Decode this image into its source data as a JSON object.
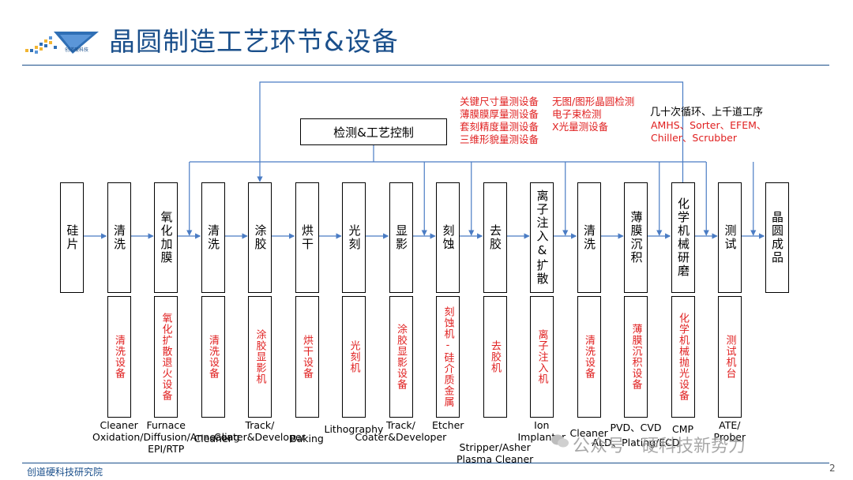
{
  "title": "晶圆制造工艺环节&设备",
  "logo_text": "创道硬科技",
  "footer": "创道硬科技研究院",
  "page_number": "2",
  "control_box": "检测&工艺控制",
  "inspection_left": [
    "关键尺寸量测设备",
    "薄膜膜厚量测设备",
    "套刻精度量测设备",
    "三维形貌量测设备"
  ],
  "inspection_right": [
    "无图/图形晶圆检测",
    "电子束检测",
    "X光量测设备"
  ],
  "loop_text": "几十次循环、上千道工序",
  "automation_lines": [
    "AMHS、Sorter、EFEM、",
    "Chiller、Scrubber"
  ],
  "watermark": "公众号 · 硬科技新势力",
  "colors": {
    "title": "#1a4f8b",
    "red": "#e02020",
    "line": "#4a7cc4"
  },
  "steps": [
    {
      "process": "硅片",
      "equipment": "",
      "english": ""
    },
    {
      "process": "清洗",
      "equipment": "清洗设备",
      "english": "Cleaner"
    },
    {
      "process": "氧化加膜",
      "equipment": "氧化扩散退火设备",
      "english": "Furnace\nOxidation/Diffusion/Annealing\nEPI/RTP"
    },
    {
      "process": "清洗",
      "equipment": "清洗设备",
      "english": "Cleaner"
    },
    {
      "process": "涂胶",
      "equipment": "涂胶显影机",
      "english": "Track/\nCoater&Developer"
    },
    {
      "process": "烘干",
      "equipment": "烘干设备",
      "english": "Baking"
    },
    {
      "process": "光刻",
      "equipment": "光刻机",
      "english": "Lithography"
    },
    {
      "process": "显影",
      "equipment": "涂胶显影设备",
      "english": "Track/\nCoater&Developer"
    },
    {
      "process": "刻蚀",
      "equipment": "刻蚀机-硅介质金属",
      "english": "Etcher"
    },
    {
      "process": "去胶",
      "equipment": "去胶机",
      "english": "Stripper/Asher\nPlasma Cleaner"
    },
    {
      "process": "离子注入&扩散",
      "equipment": "离子注入机",
      "english": "Ion\nImplanter"
    },
    {
      "process": "清洗",
      "equipment": "清洗设备",
      "english": "Cleaner"
    },
    {
      "process": "薄膜沉积",
      "equipment": "薄膜沉积设备",
      "english": "PVD、CVD\nALD、Plating/ECD"
    },
    {
      "process": "化学机械研磨",
      "equipment": "化学机械抛光设备",
      "english": "CMP"
    },
    {
      "process": "测试",
      "equipment": "测试机台",
      "english": "ATE/\nProber"
    },
    {
      "process": "晶圆成品",
      "equipment": "",
      "english": ""
    }
  ]
}
